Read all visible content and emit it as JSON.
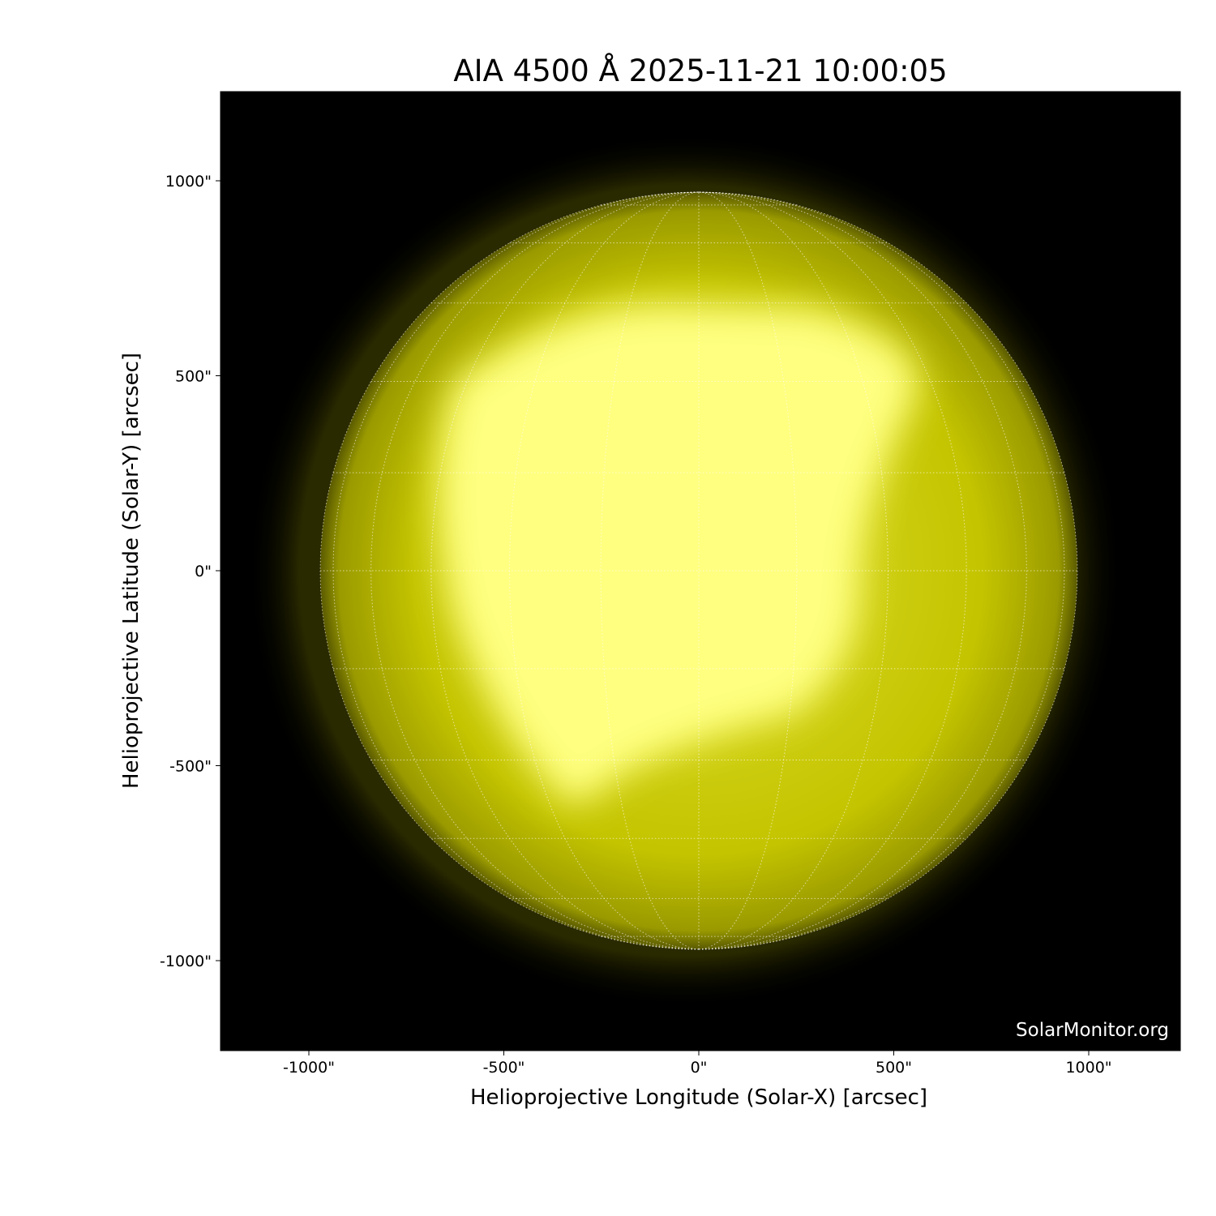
{
  "title": "AIA 4500 Å 2025-11-21 10:00:05",
  "watermark": "SolarMonitor.org",
  "xaxis": {
    "label": "Helioprojective Longitude (Solar-X) [arcsec]",
    "ticks": [
      "-1000\"",
      "-500\"",
      "0\"",
      "500\"",
      "1000\""
    ],
    "tick_values": [
      -1000,
      -500,
      0,
      500,
      1000
    ]
  },
  "yaxis": {
    "label": "Helioprojective Latitude (Solar-Y) [arcsec]",
    "ticks": [
      "1000\"",
      "500\"",
      "0\"",
      "-500\"",
      "-1000\""
    ],
    "tick_values": [
      1000,
      500,
      0,
      -500,
      -1000
    ]
  },
  "image": {
    "colormap": "yellow",
    "background": "#000000",
    "disk_color": "#c8c800",
    "bright_color": "#ffff80",
    "grid_color": "#ffffff",
    "grid_spacing_deg": 15
  }
}
